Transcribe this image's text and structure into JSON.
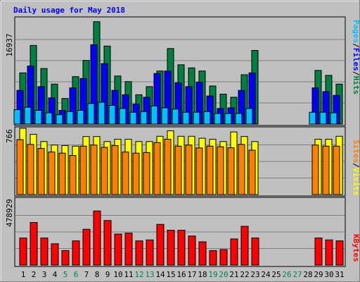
{
  "chart_data": {
    "type": "bar",
    "title": "Daily usage for May 2018",
    "categories": [
      "1",
      "2",
      "3",
      "4",
      "5",
      "6",
      "7",
      "8",
      "9",
      "10",
      "11",
      "12",
      "13",
      "14",
      "15",
      "16",
      "17",
      "18",
      "19",
      "20",
      "21",
      "22",
      "23",
      "24",
      "25",
      "26",
      "27",
      "28",
      "29",
      "30",
      "31"
    ],
    "weekend_days": [
      "5",
      "6",
      "12",
      "13",
      "19",
      "20",
      "26",
      "27"
    ],
    "panels": [
      {
        "id": "hits-files-pages",
        "max_label": "16937",
        "ylim": [
          0,
          16937
        ],
        "series": [
          {
            "name": "Hits",
            "color": "#008040",
            "values": [
              8200,
              12600,
              8900,
              6400,
              4100,
              7600,
              10200,
              16400,
              12500,
              7700,
              6800,
              4700,
              6000,
              8500,
              12100,
              9500,
              9000,
              8500,
              6100,
              4800,
              4300,
              7900,
              11800,
              0,
              0,
              0,
              0,
              0,
              8600,
              7800,
              6400
            ]
          },
          {
            "name": "Files",
            "color": "#0000ff",
            "values": [
              5400,
              9300,
              6000,
              4200,
              2200,
              5800,
              7300,
              12700,
              9700,
              5400,
              4700,
              3200,
              4300,
              8100,
              8500,
              6600,
              6000,
              6700,
              4500,
              2500,
              2600,
              5400,
              8200,
              0,
              0,
              0,
              0,
              0,
              5800,
              5200,
              4600
            ]
          },
          {
            "name": "Pages",
            "color": "#00c0ff",
            "values": [
              2300,
              2700,
              2200,
              1800,
              1500,
              2000,
              2200,
              3300,
              3500,
              3000,
              2500,
              1900,
              2000,
              2900,
              2600,
              2400,
              1900,
              1900,
              2000,
              1700,
              1700,
              1700,
              2500,
              0,
              0,
              0,
              0,
              0,
              1900,
              1900,
              1800
            ]
          }
        ]
      },
      {
        "id": "visits-sites",
        "max_label": "766",
        "ylim": [
          0,
          766
        ],
        "series": [
          {
            "name": "Visits",
            "color": "#ffff00",
            "values": [
              766,
              697,
              613,
              573,
              567,
              560,
              671,
              671,
              613,
              640,
              640,
              613,
              613,
              674,
              737,
              674,
              674,
              651,
              640,
              613,
              724,
              671,
              613,
              0,
              0,
              0,
              0,
              0,
              640,
              640,
              674
            ]
          },
          {
            "name": "Sites",
            "color": "#ff8000",
            "values": [
              635,
              580,
              533,
              492,
              479,
              452,
              560,
              573,
              546,
              566,
              492,
              479,
              486,
              601,
              640,
              560,
              573,
              539,
              560,
              553,
              541,
              580,
              513,
              0,
              0,
              0,
              0,
              0,
              573,
              560,
              560
            ]
          }
        ]
      },
      {
        "id": "kbytes",
        "max_label": "478929",
        "ylim": [
          0,
          478929
        ],
        "series": [
          {
            "name": "KBytes",
            "color": "#ff0000",
            "values": [
              196000,
              308000,
              196000,
              154000,
              105000,
              175000,
              259000,
              391000,
              322000,
              224000,
              231000,
              175000,
              182000,
              294000,
              252000,
              252000,
              210000,
              168000,
              105000,
              112000,
              189000,
              280000,
              196000,
              0,
              0,
              0,
              0,
              0,
              196000,
              182000,
              175000
            ]
          }
        ]
      }
    ],
    "colors": {
      "background": "#c0c0c0",
      "panel": "#c0c0c0",
      "grid": "#808080",
      "title": "#0000ff",
      "axis_label": "#000000",
      "weekend_label": "#00805c"
    }
  }
}
